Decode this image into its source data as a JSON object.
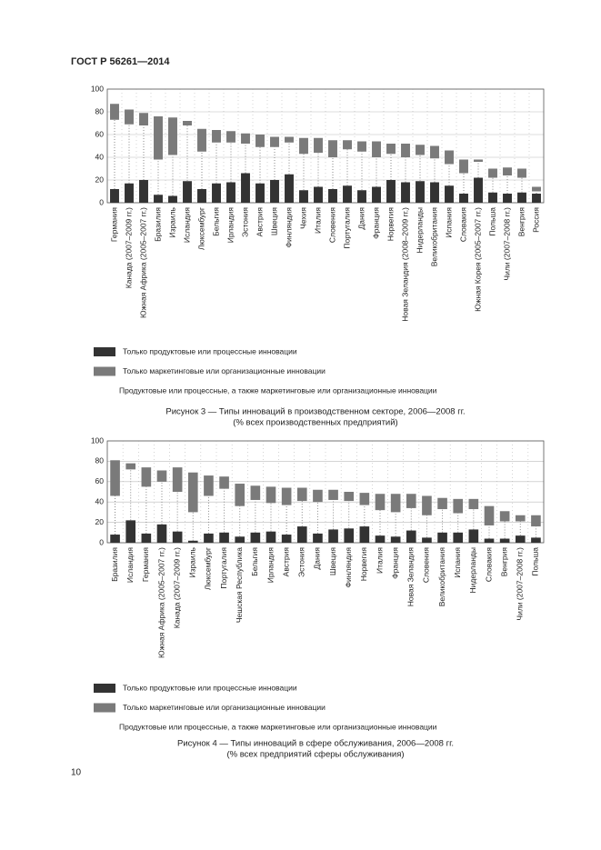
{
  "header": "ГОСТ Р 56261—2014",
  "page_number": "10",
  "chart_data": [
    {
      "type": "bar",
      "stacked": true,
      "title": "Рисунок 3 — Типы инноваций в производственном секторе, 2006—2008 гг.",
      "subtitle": "(% всех производственных предприятий)",
      "categories": [
        "Германия",
        "Канада (2007–2009 гг.)",
        "Южная Африка (2005–2007 гг.)",
        "Бразилия",
        "Израиль",
        "Исландия",
        "Люксембург",
        "Бельгия",
        "Ирландия",
        "Эстония",
        "Австрия",
        "Швеция",
        "Финляндия",
        "Чехия",
        "Италия",
        "Словения",
        "Португалия",
        "Дания",
        "Франция",
        "Норвегия",
        "Новая Зеландия (2008–2009 гг.)",
        "Нидерланды",
        "Великобритания",
        "Испания",
        "Словакия",
        "Южная Корея (2005–2007 гг.)",
        "Польша",
        "Чили (2007–2008 гг.)",
        "Венгрия",
        "Россия"
      ],
      "series": [
        {
          "name": "Только продуктовые или процессные инновации",
          "color": "#333333",
          "values": [
            12,
            17,
            20,
            7,
            6,
            19,
            12,
            17,
            18,
            26,
            17,
            20,
            25,
            11,
            14,
            12,
            15,
            11,
            14,
            20,
            18,
            19,
            18,
            15,
            8,
            22,
            9,
            8,
            9,
            8
          ]
        },
        {
          "name": "Продуктовые или процессные, а также маркетинговые или организационные инновации",
          "color": "#888888",
          "style": "dotted",
          "values": [
            61,
            52,
            48,
            31,
            36,
            49,
            33,
            36,
            35,
            26,
            32,
            29,
            28,
            32,
            30,
            28,
            32,
            34,
            26,
            23,
            22,
            23,
            21,
            19,
            18,
            14,
            13,
            16,
            13,
            2
          ]
        },
        {
          "name": "Только маркетинговые или организационные инновации",
          "color": "#7a7a7a",
          "values": [
            14,
            13,
            11,
            38,
            33,
            4,
            20,
            11,
            10,
            9,
            11,
            9,
            5,
            14,
            13,
            15,
            8,
            9,
            14,
            9,
            12,
            9,
            11,
            12,
            12,
            2,
            8,
            7,
            8,
            4
          ]
        }
      ],
      "ylim": [
        0,
        100
      ],
      "yticks": [
        0,
        20,
        40,
        60,
        80,
        100
      ],
      "grid": true
    },
    {
      "type": "bar",
      "stacked": true,
      "title": "Рисунок 4 — Типы инноваций в сфере обслуживания, 2006—2008 гг.",
      "subtitle": "(% всех предприятий сферы обслуживания)",
      "categories": [
        "Бразилия",
        "Исландия",
        "Германия",
        "Южная Африка (2005–2007 гг.)",
        "Канада (2007–2009 гг.)",
        "Израиль",
        "Люксембург",
        "Португалия",
        "Чешская Республика",
        "Бельгия",
        "Ирландия",
        "Австрия",
        "Эстония",
        "Дания",
        "Швеция",
        "Финляндия",
        "Норвегия",
        "Италия",
        "Франция",
        "Новая Зеландия",
        "Словения",
        "Великобритания",
        "Испания",
        "Нидерланды",
        "Словакия",
        "Венгрия",
        "Чили (2007–2008 гг.)",
        "Польша"
      ],
      "series": [
        {
          "name": "Только продуктовые или процессные инновации",
          "color": "#333333",
          "values": [
            8,
            22,
            9,
            18,
            11,
            2,
            9,
            10,
            6,
            10,
            11,
            8,
            16,
            9,
            13,
            14,
            16,
            7,
            6,
            12,
            5,
            10,
            10,
            13,
            4,
            4,
            7,
            5
          ]
        },
        {
          "name": "Продуктовые или процессные, а также маркетинговые или организационные инновации",
          "color": "#888888",
          "style": "dotted",
          "values": [
            38,
            50,
            46,
            42,
            39,
            28,
            37,
            43,
            30,
            32,
            28,
            29,
            25,
            31,
            29,
            27,
            21,
            25,
            24,
            22,
            22,
            23,
            19,
            20,
            13,
            17,
            14,
            11
          ]
        },
        {
          "name": "Только маркетинговые или организационные инновации",
          "color": "#7a7a7a",
          "values": [
            35,
            6,
            19,
            11,
            24,
            39,
            20,
            12,
            22,
            14,
            16,
            17,
            13,
            12,
            10,
            9,
            12,
            16,
            18,
            14,
            19,
            11,
            14,
            10,
            19,
            10,
            6,
            11
          ]
        }
      ],
      "ylim": [
        0,
        100
      ],
      "yticks": [
        0,
        20,
        40,
        60,
        80,
        100
      ],
      "grid": true
    }
  ]
}
